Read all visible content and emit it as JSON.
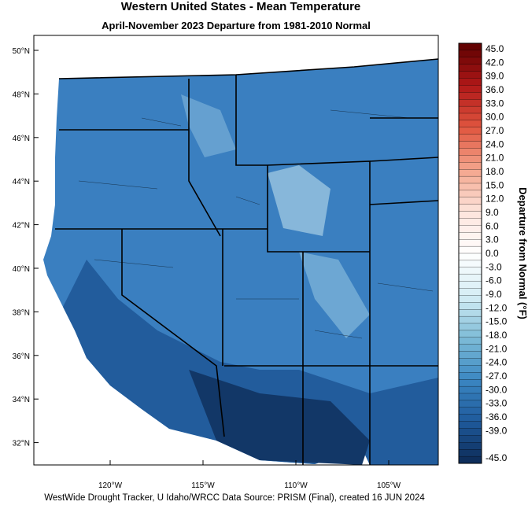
{
  "header": {
    "title": "Western United States - Mean Temperature",
    "subtitle": "April-November 2023  Departure from 1981-2010 Normal"
  },
  "map": {
    "latitude_labels": [
      "50°N",
      "48°N",
      "46°N",
      "44°N",
      "42°N",
      "40°N",
      "38°N",
      "36°N",
      "34°N",
      "32°N"
    ],
    "longitude_labels": [
      "120°W",
      "115°W",
      "110°W",
      "105°W"
    ]
  },
  "colorbar": {
    "title": "Departure from Normal (°F)",
    "ticks": [
      {
        "value": 45,
        "label": "45.0"
      },
      {
        "value": 42,
        "label": "42.0"
      },
      {
        "value": 39,
        "label": "39.0"
      },
      {
        "value": 36,
        "label": "36.0"
      },
      {
        "value": 33,
        "label": "33.0"
      },
      {
        "value": 30,
        "label": "30.0"
      },
      {
        "value": 27,
        "label": "27.0"
      },
      {
        "value": 24,
        "label": "24.0"
      },
      {
        "value": 21,
        "label": "21.0"
      },
      {
        "value": 18,
        "label": "18.0"
      },
      {
        "value": 15,
        "label": "15.0"
      },
      {
        "value": 12,
        "label": "12.0"
      },
      {
        "value": 9,
        "label": "9.0"
      },
      {
        "value": 6,
        "label": "6.0"
      },
      {
        "value": 3,
        "label": "3.0"
      },
      {
        "value": 0,
        "label": "0.0"
      },
      {
        "value": -3,
        "label": "-3.0"
      },
      {
        "value": -6,
        "label": "-6.0"
      },
      {
        "value": -9,
        "label": "-9.0"
      },
      {
        "value": -12,
        "label": "-12.0"
      },
      {
        "value": -15,
        "label": "-15.0"
      },
      {
        "value": -18,
        "label": "-18.0"
      },
      {
        "value": -21,
        "label": "-21.0"
      },
      {
        "value": -24,
        "label": "-24.0"
      },
      {
        "value": -27,
        "label": "-27.0"
      },
      {
        "value": -30,
        "label": "-30.0"
      },
      {
        "value": -33,
        "label": "-33.0"
      },
      {
        "value": -36,
        "label": "-36.0"
      },
      {
        "value": -39,
        "label": "-39.0"
      },
      {
        "value": -45,
        "label": "-45.0"
      }
    ],
    "colors": [
      "#5c0000",
      "#b01818",
      "#e0553f",
      "#f4a58c",
      "#fde4dc",
      "#ffffff",
      "#d6eef5",
      "#7fbdd8",
      "#3b87c2",
      "#1f5a9c",
      "#0c2a55"
    ]
  },
  "footer": "WestWide Drought Tracker, U Idaho/WRCC Data Source: PRISM (Final), created 16 JUN 2024"
}
